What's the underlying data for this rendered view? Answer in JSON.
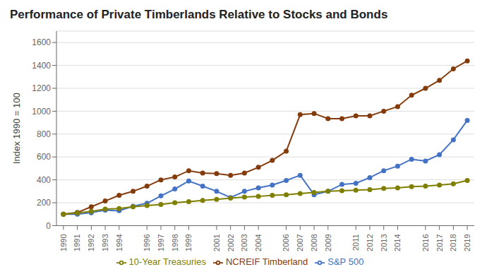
{
  "chart_data": {
    "type": "line",
    "title": "Performance of Private Timberlands Relative to Stocks and Bonds",
    "y_label": "Index 1990 = 100",
    "x": [
      1990,
      1991,
      1992,
      1993,
      1994,
      1995,
      1996,
      1997,
      1998,
      1999,
      2000,
      2001,
      2002,
      2003,
      2004,
      2005,
      2006,
      2007,
      2008,
      2009,
      2010,
      2011,
      2012,
      2013,
      2014,
      2015,
      2016,
      2017,
      2018,
      2019
    ],
    "xlim": [
      1989.5,
      2019.5
    ],
    "xticks": [
      1990,
      1991,
      1992,
      1993,
      1994,
      1996,
      1997,
      1998,
      1999,
      2001,
      2002,
      2003,
      2004,
      2006,
      2007,
      2008,
      2009,
      2011,
      2012,
      2013,
      2014,
      2016,
      2017,
      2018,
      2019
    ],
    "ylim": [
      0,
      1700
    ],
    "yticks": [
      0,
      200,
      400,
      600,
      800,
      1000,
      1200,
      1400,
      1600
    ],
    "grid": "y",
    "legend": "bottom",
    "series": [
      {
        "name": "S&P 500",
        "color": "#4472C4",
        "marker": "circle",
        "line_style": "solid",
        "values": [
          100,
          100,
          113,
          135,
          130,
          170,
          195,
          260,
          320,
          390,
          345,
          300,
          245,
          300,
          330,
          355,
          395,
          440,
          270,
          300,
          360,
          370,
          420,
          480,
          520,
          580,
          565,
          620,
          750,
          920
        ]
      },
      {
        "name": "NCREIF Timberland",
        "color": "#843C0C",
        "marker": "circle",
        "line_style": "solid",
        "values": [
          100,
          115,
          165,
          215,
          265,
          300,
          345,
          400,
          425,
          480,
          460,
          455,
          440,
          460,
          510,
          570,
          650,
          970,
          980,
          935,
          935,
          960,
          960,
          1000,
          1040,
          1140,
          1200,
          1270,
          1370,
          1440
        ]
      },
      {
        "name": "10-Year Treasuries",
        "color": "#7F7F00",
        "marker": "circle",
        "line_style": "solid",
        "values": [
          100,
          110,
          125,
          145,
          150,
          165,
          175,
          185,
          200,
          210,
          220,
          230,
          240,
          250,
          255,
          265,
          270,
          280,
          290,
          300,
          305,
          310,
          315,
          325,
          330,
          340,
          345,
          355,
          365,
          395
        ]
      }
    ]
  }
}
